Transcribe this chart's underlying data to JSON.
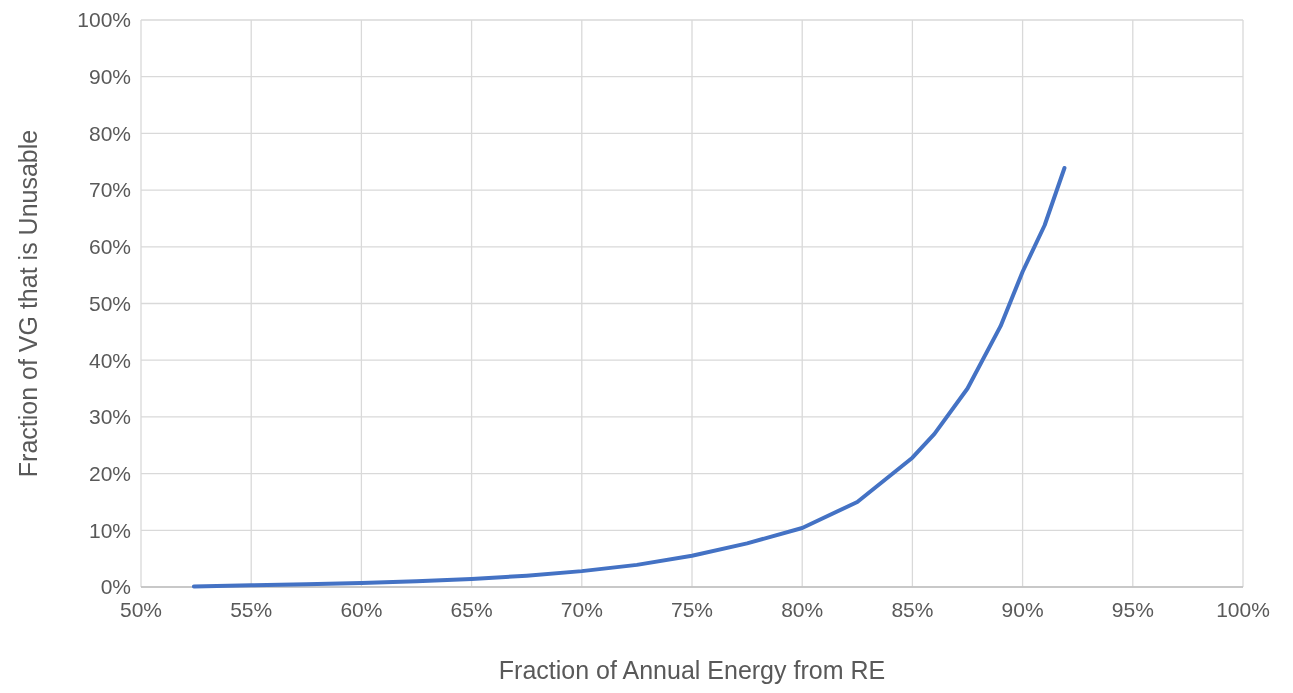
{
  "chart_data": {
    "type": "line",
    "xlabel": "Fraction of Annual Energy from RE",
    "ylabel": "Fraction of VG that is Unusable",
    "x": [
      52.4,
      55,
      57.5,
      60,
      62.5,
      65,
      67.5,
      70,
      72.5,
      75,
      77.5,
      80,
      82.5,
      85,
      86,
      87.5,
      89,
      90,
      91,
      91.9
    ],
    "series": [
      {
        "color": "#4472c4",
        "values": [
          0.1,
          0.3,
          0.5,
          0.7,
          1.0,
          1.4,
          2.0,
          2.8,
          3.9,
          5.5,
          7.7,
          10.4,
          15,
          22.8,
          27,
          35,
          46,
          55.6,
          63.8,
          73.9
        ]
      }
    ],
    "xlim": [
      50,
      100
    ],
    "ylim": [
      0,
      100
    ],
    "xticks": [
      {
        "value": 50,
        "label": "50%"
      },
      {
        "value": 55,
        "label": "55%"
      },
      {
        "value": 60,
        "label": "60%"
      },
      {
        "value": 65,
        "label": "65%"
      },
      {
        "value": 70,
        "label": "70%"
      },
      {
        "value": 75,
        "label": "75%"
      },
      {
        "value": 80,
        "label": "80%"
      },
      {
        "value": 85,
        "label": "85%"
      },
      {
        "value": 90,
        "label": "90%"
      },
      {
        "value": 95,
        "label": "95%"
      },
      {
        "value": 100,
        "label": "100%"
      }
    ],
    "yticks": [
      {
        "value": 0,
        "label": "0%"
      },
      {
        "value": 10,
        "label": "10%"
      },
      {
        "value": 20,
        "label": "20%"
      },
      {
        "value": 30,
        "label": "30%"
      },
      {
        "value": 40,
        "label": "40%"
      },
      {
        "value": 50,
        "label": "50%"
      },
      {
        "value": 60,
        "label": "60%"
      },
      {
        "value": 70,
        "label": "70%"
      },
      {
        "value": 80,
        "label": "80%"
      },
      {
        "value": 90,
        "label": "90%"
      },
      {
        "value": 100,
        "label": "100%"
      }
    ],
    "grid": true,
    "marker": "none",
    "line_style": "solid"
  }
}
